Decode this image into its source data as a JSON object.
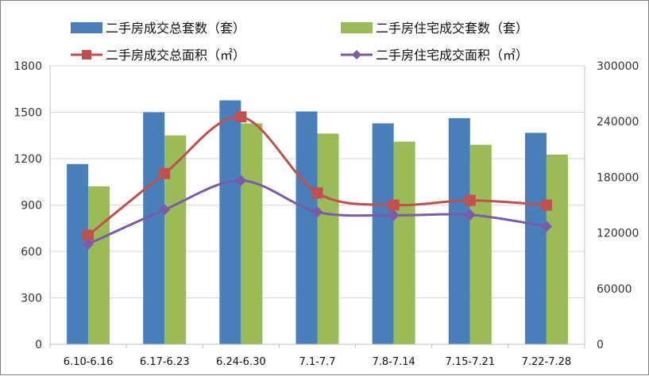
{
  "chart_data": {
    "type": "bar+line",
    "title": "",
    "categories": [
      "6.10-6.16",
      "6.17-6.23",
      "6.24-6.30",
      "7.1-7.7",
      "7.8-7.14",
      "7.15-7.21",
      "7.22-7.28"
    ],
    "ylim_left": [
      0,
      1800
    ],
    "yticks_left": [
      0,
      300,
      600,
      900,
      1200,
      1500,
      1800
    ],
    "ylim_right": [
      0,
      300000
    ],
    "yticks_right": [
      0,
      60000,
      120000,
      180000,
      240000,
      300000
    ],
    "grid": true,
    "legend_position": "top",
    "series": [
      {
        "name": "二手房成交总套数（套）",
        "type": "bar",
        "axis": "left",
        "color": "#4a7ebb",
        "values": [
          1165,
          1500,
          1577,
          1505,
          1428,
          1462,
          1367
        ]
      },
      {
        "name": "二手房住宅成交套数（套）",
        "type": "bar",
        "axis": "left",
        "color": "#9bbb59",
        "values": [
          1021,
          1350,
          1428,
          1362,
          1310,
          1290,
          1226
        ]
      },
      {
        "name": "二手房成交总面积（㎡）",
        "type": "line",
        "axis": "right",
        "color": "#c0504d",
        "marker": "square",
        "values": [
          117500,
          184000,
          245000,
          163000,
          150000,
          155000,
          150000
        ]
      },
      {
        "name": "二手房住宅成交面积（㎡）",
        "type": "line",
        "axis": "right",
        "color": "#7b5aa6",
        "marker": "diamond",
        "values": [
          108000,
          145000,
          176500,
          142500,
          139000,
          139500,
          127000
        ]
      }
    ]
  }
}
